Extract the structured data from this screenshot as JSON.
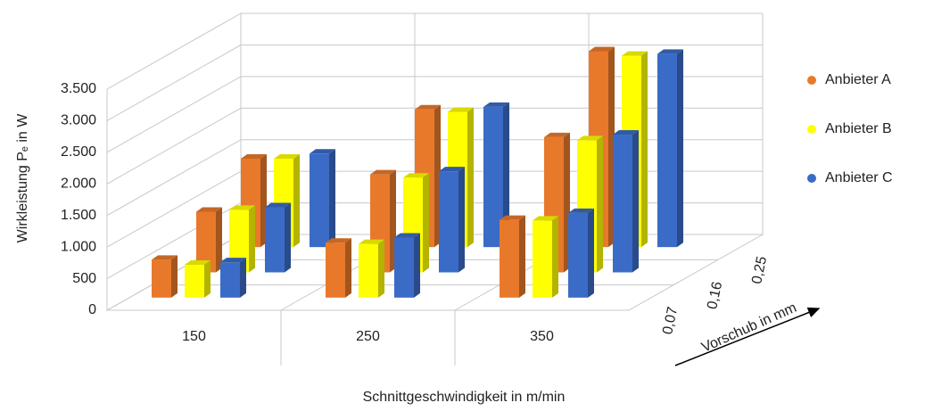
{
  "chart_data": {
    "type": "bar3d",
    "y_label": "Wirkleistung Pₑ in W",
    "x_label": "Schnittgeschwindigkeit in m/min",
    "depth_label": "Vorschub in mm",
    "categories": [
      "150",
      "250",
      "350"
    ],
    "depth_categories": [
      "0,07",
      "0,16",
      "0,25"
    ],
    "series": [
      {
        "name": "Anbieter A",
        "color": "#e8792b",
        "values": [
          [
            600,
            870,
            1230
          ],
          [
            960,
            1550,
            2140
          ],
          [
            1400,
            2180,
            3100
          ]
        ]
      },
      {
        "name": "Anbieter B",
        "color": "#ffff00",
        "values": [
          [
            520,
            850,
            1220
          ],
          [
            990,
            1500,
            2090
          ],
          [
            1400,
            2140,
            3030
          ]
        ]
      },
      {
        "name": "Anbieter C",
        "color": "#3a6bc6",
        "values": [
          [
            560,
            950,
            1340
          ],
          [
            1030,
            1600,
            2180
          ],
          [
            1480,
            2220,
            3060
          ]
        ]
      }
    ],
    "ylim": [
      0,
      3500
    ],
    "yticks": [
      0,
      500,
      {
        "value": 1000,
        "label": "1.000"
      },
      {
        "value": 1500,
        "label": "1.500"
      },
      {
        "value": 2000,
        "label": "2.000"
      },
      {
        "value": 2500,
        "label": "2.500"
      },
      {
        "value": 3000,
        "label": "3.000"
      },
      {
        "value": 3500,
        "label": "3.500"
      }
    ],
    "grid": true,
    "legend": "right"
  }
}
